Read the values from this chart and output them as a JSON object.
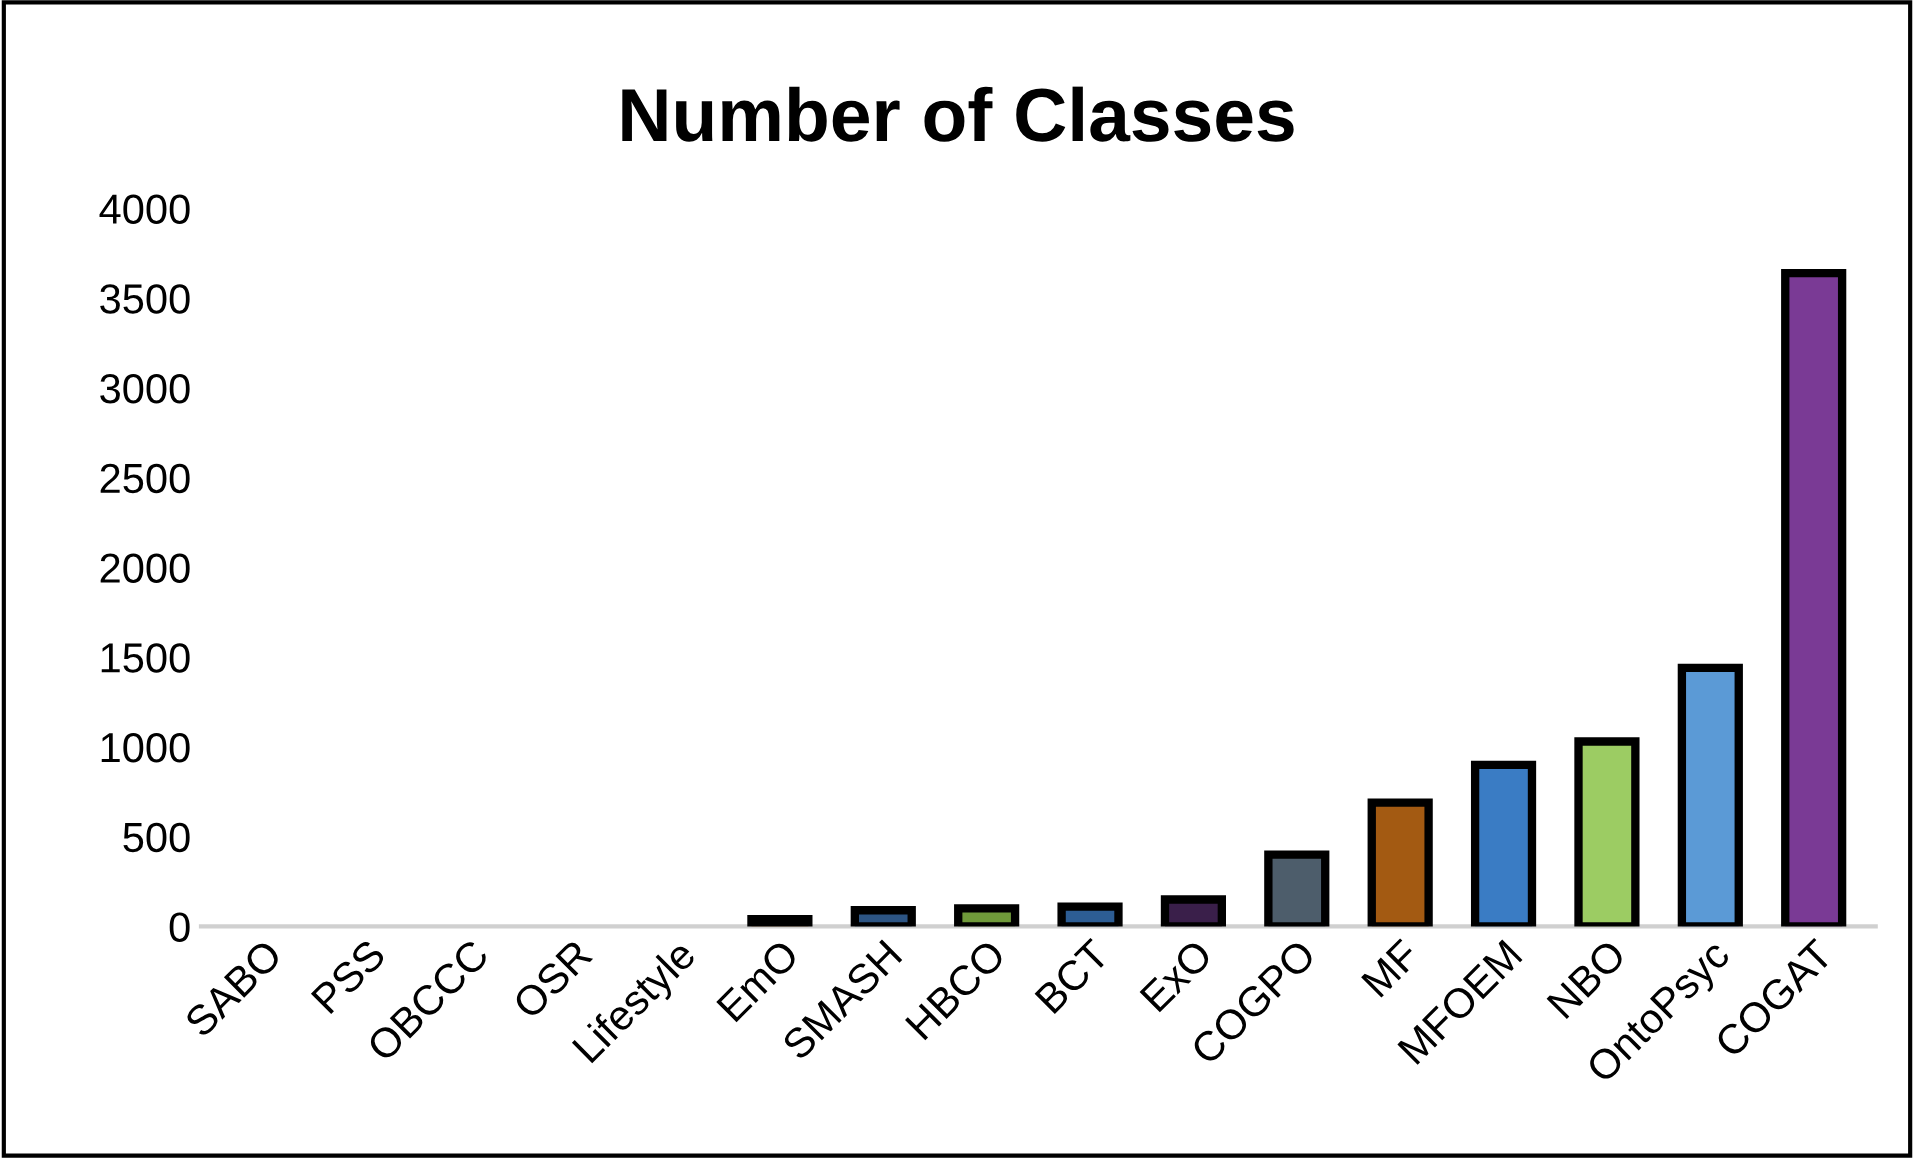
{
  "chart_data": {
    "type": "bar",
    "title": "Number of Classes",
    "categories": [
      "SABO",
      "PSS",
      "OBCCC",
      "OSR",
      "Lifestyle",
      "EmO",
      "SMASH",
      "HBCO",
      "BCT",
      "ExO",
      "COGPO",
      "MF",
      "MFOEM",
      "NBO",
      "OntoPsyc",
      "COGAT"
    ],
    "values": [
      0,
      0,
      0,
      0,
      0,
      40,
      90,
      100,
      110,
      150,
      400,
      690,
      900,
      1030,
      1440,
      3640
    ],
    "colors": [
      null,
      null,
      null,
      null,
      null,
      "#c07a30",
      "#2d5584",
      "#6f9a3a",
      "#2d5d94",
      "#3a1f4a",
      "#4d5d6b",
      "#a35a12",
      "#3a7cc4",
      "#9ccc63",
      "#5b9ad6",
      "#7a3a95"
    ],
    "ylim": [
      0,
      4000
    ],
    "yticks": [
      0,
      500,
      1000,
      1500,
      2000,
      2500,
      3000,
      3500,
      4000
    ],
    "grid": false
  }
}
